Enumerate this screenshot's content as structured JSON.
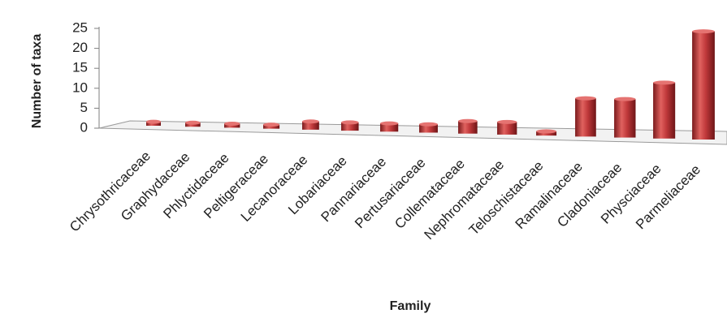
{
  "chart_data": {
    "type": "bar",
    "title": null,
    "x_label": "Family",
    "y_label": "Number of taxa",
    "categories": [
      "Chrysothricaceae",
      "Graphydaceae",
      "Phlyctidaceae",
      "Peltigeraceae",
      "Lecanoraceae",
      "Lobariaceae",
      "Pannariaceae",
      "Pertusariaceae",
      "Collemataceae",
      "Nephromataceae",
      "Teloschistaceae",
      "Ramalinaceae",
      "Cladoniaceae",
      "Physciaceae",
      "Parmeliaceae"
    ],
    "values": [
      1,
      1,
      1,
      1,
      2,
      2,
      2,
      2,
      3,
      3,
      1,
      9,
      9,
      13,
      25
    ],
    "color": "#c0393b",
    "ylim": [
      0,
      25
    ],
    "yticks": [
      0,
      5,
      10,
      15,
      20,
      25
    ],
    "grid": false
  }
}
